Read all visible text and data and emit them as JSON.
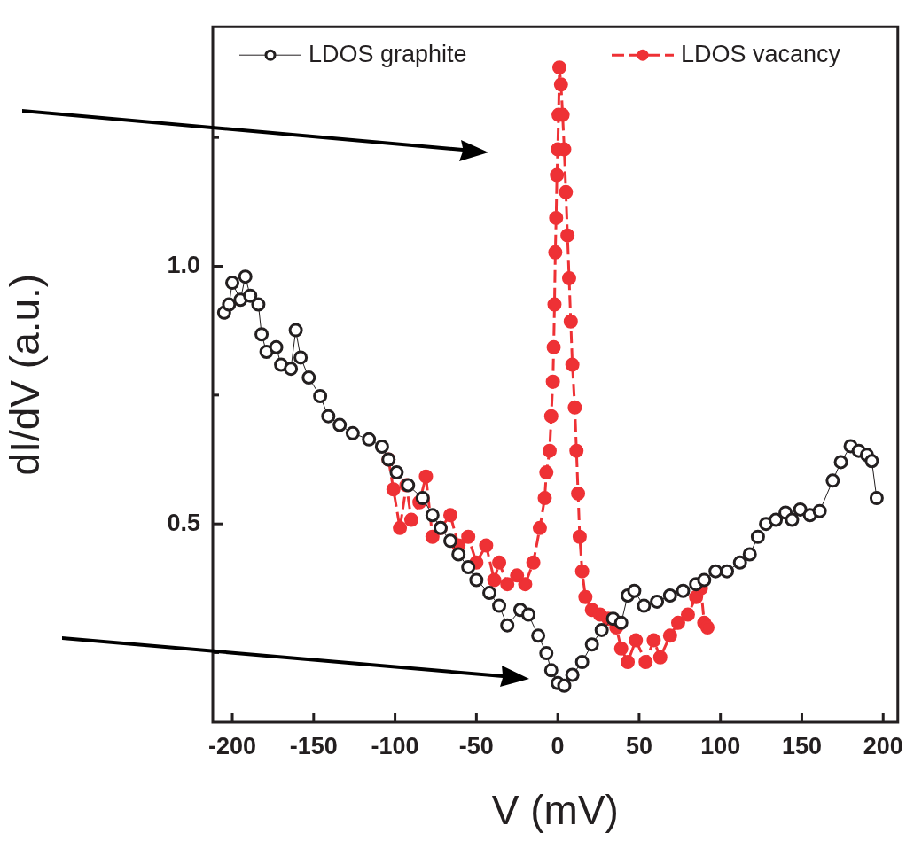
{
  "chart_data": {
    "type": "line",
    "xlabel": "V (mV)",
    "ylabel": "dI/dV (a.u.)",
    "xlim": [
      -212,
      209
    ],
    "xticks": [
      -200,
      -150,
      -100,
      -50,
      0,
      50,
      100,
      150,
      200
    ],
    "ylim": [
      0.115,
      1.465
    ],
    "yticks": [
      {
        "value": 0.25,
        "label": null
      },
      0.5,
      {
        "value": 0.75,
        "label": null
      },
      {
        "value": 1.0,
        "label": "1.0"
      },
      {
        "value": 1.25,
        "label": null
      }
    ],
    "legend": "top",
    "marker": "circle",
    "series": [
      {
        "name": "LDOS graphite",
        "color": "#231f20",
        "line_style": "solid",
        "x": [
          -205,
          -202,
          -200,
          -195,
          -192,
          -189,
          -184,
          -182,
          -179,
          -173,
          -170,
          -164,
          -161,
          -158,
          -153,
          -146,
          -141,
          -134,
          -126,
          -116,
          -108,
          -104,
          -99,
          -92,
          -83,
          -77,
          -72,
          -66,
          -61,
          -55,
          -50,
          -42,
          -36,
          -31,
          -23,
          -18,
          -12,
          -7,
          -4,
          0,
          4,
          9,
          15,
          21,
          27,
          34,
          39,
          43,
          47,
          53,
          61,
          69,
          77,
          85,
          90,
          97,
          104,
          112,
          118,
          123,
          128,
          134,
          140,
          144,
          149,
          155,
          161,
          169,
          174,
          180,
          185,
          190,
          193,
          196
        ],
        "values": [
          0.91,
          0.926,
          0.968,
          0.935,
          0.98,
          0.943,
          0.926,
          0.868,
          0.834,
          0.843,
          0.809,
          0.801,
          0.876,
          0.823,
          0.784,
          0.748,
          0.709,
          0.692,
          0.676,
          0.664,
          0.65,
          0.625,
          0.6,
          0.575,
          0.55,
          0.517,
          0.492,
          0.467,
          0.441,
          0.416,
          0.391,
          0.366,
          0.341,
          0.303,
          0.333,
          0.324,
          0.283,
          0.249,
          0.216,
          0.191,
          0.186,
          0.207,
          0.232,
          0.266,
          0.294,
          0.316,
          0.308,
          0.361,
          0.37,
          0.341,
          0.349,
          0.361,
          0.37,
          0.383,
          0.391,
          0.408,
          0.408,
          0.425,
          0.441,
          0.475,
          0.5,
          0.508,
          0.522,
          0.508,
          0.528,
          0.517,
          0.525,
          0.584,
          0.62,
          0.651,
          0.642,
          0.634,
          0.622,
          0.55
        ]
      },
      {
        "name": "LDOS vacancy",
        "color": "#ee3135",
        "line_style": "dashed",
        "x": [
          -104,
          -101,
          -97,
          -93,
          -90,
          -85,
          -81,
          -77,
          -72,
          -66,
          -61,
          -55,
          -50,
          -44,
          -39,
          -36,
          -31,
          -25,
          -20,
          -15,
          -11,
          -8,
          -7,
          -5,
          -4,
          -3,
          -2.5,
          -2,
          -1.5,
          -1,
          -0.5,
          0,
          0.5,
          1,
          2,
          3,
          4,
          5,
          6,
          7,
          8,
          9,
          10.5,
          11.5,
          12.5,
          13.5,
          15,
          17,
          21,
          26,
          31,
          36,
          39,
          43,
          48,
          54,
          59,
          63,
          69,
          74,
          80,
          85,
          88,
          90,
          92
        ],
        "values": [
          0.625,
          0.567,
          0.492,
          0.575,
          0.508,
          0.542,
          0.592,
          0.475,
          0.492,
          0.517,
          0.458,
          0.475,
          0.425,
          0.458,
          0.391,
          0.425,
          0.383,
          0.4,
          0.383,
          0.425,
          0.492,
          0.55,
          0.6,
          0.642,
          0.709,
          0.776,
          0.843,
          0.926,
          1.027,
          1.094,
          1.177,
          1.227,
          1.294,
          1.386,
          1.353,
          1.294,
          1.227,
          1.144,
          1.06,
          0.977,
          0.893,
          0.809,
          0.726,
          0.642,
          0.559,
          0.475,
          0.408,
          0.358,
          0.333,
          0.324,
          0.316,
          0.299,
          0.258,
          0.232,
          0.274,
          0.232,
          0.274,
          0.241,
          0.283,
          0.308,
          0.324,
          0.358,
          0.375,
          0.308,
          0.299
        ]
      }
    ]
  }
}
